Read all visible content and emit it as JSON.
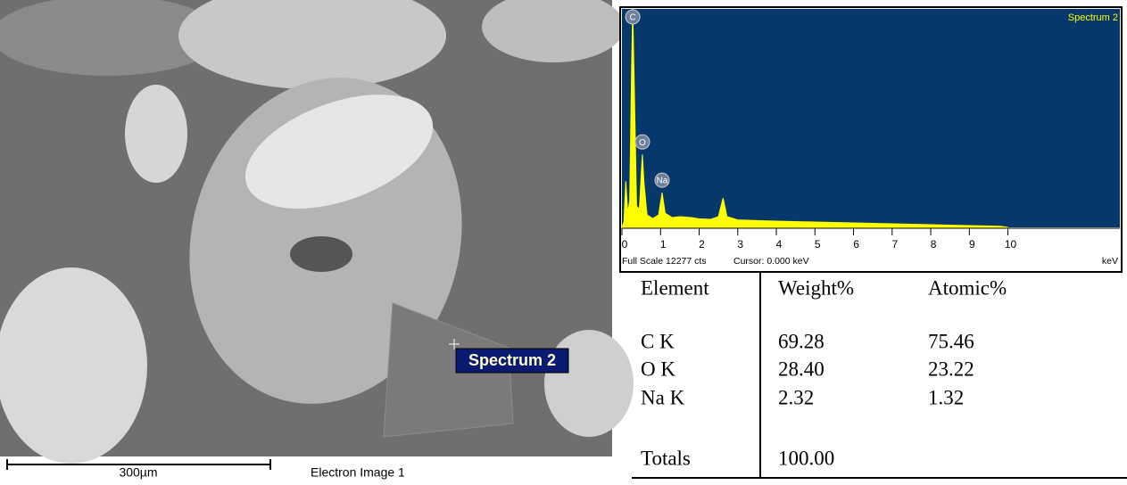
{
  "sem_image": {
    "spectrum_label": "Spectrum 2",
    "scale_bar_label": "300µm",
    "caption": "Electron Image 1"
  },
  "chart_data": {
    "type": "area",
    "title": "Spectrum 2",
    "full_scale_label": "Full Scale 12277 cts",
    "cursor_label": "Cursor: 0.000 keV",
    "x_label": "keV",
    "color": "#ffff00",
    "background": "#06386b",
    "x": [
      0.0,
      0.05,
      0.1,
      0.15,
      0.2,
      0.25,
      0.28,
      0.32,
      0.38,
      0.45,
      0.5,
      0.53,
      0.57,
      0.65,
      0.8,
      0.95,
      1.04,
      1.12,
      1.3,
      1.5,
      1.8,
      2.0,
      2.3,
      2.5,
      2.62,
      2.72,
      3.0,
      3.5,
      4.0,
      5.0,
      6.0,
      7.0,
      8.0,
      9.0,
      9.8,
      10.0
    ],
    "values": [
      0,
      300,
      2600,
      800,
      1500,
      9000,
      12277,
      8000,
      1200,
      1000,
      3000,
      4100,
      2500,
      700,
      500,
      700,
      1950,
      800,
      550,
      600,
      550,
      480,
      450,
      600,
      1650,
      600,
      420,
      380,
      350,
      300,
      250,
      200,
      150,
      100,
      60,
      0
    ],
    "xlim": [
      0,
      12.9
    ],
    "ylim": [
      0,
      12277
    ],
    "xticks": [
      0,
      1,
      2,
      3,
      4,
      5,
      6,
      7,
      8,
      9,
      10
    ],
    "annotations": [
      {
        "text": "C",
        "x": 0.28
      },
      {
        "text": "O",
        "x": 0.53
      },
      {
        "text": "Na",
        "x": 1.04
      }
    ]
  },
  "table": {
    "header": [
      "Element",
      "Weight%",
      "Atomic%"
    ],
    "rows": [
      [
        "C K",
        "69.28",
        "75.46"
      ],
      [
        "O K",
        "28.40",
        "23.22"
      ],
      [
        "Na K",
        "2.32",
        "1.32"
      ]
    ],
    "totals": [
      "Totals",
      "100.00"
    ]
  }
}
